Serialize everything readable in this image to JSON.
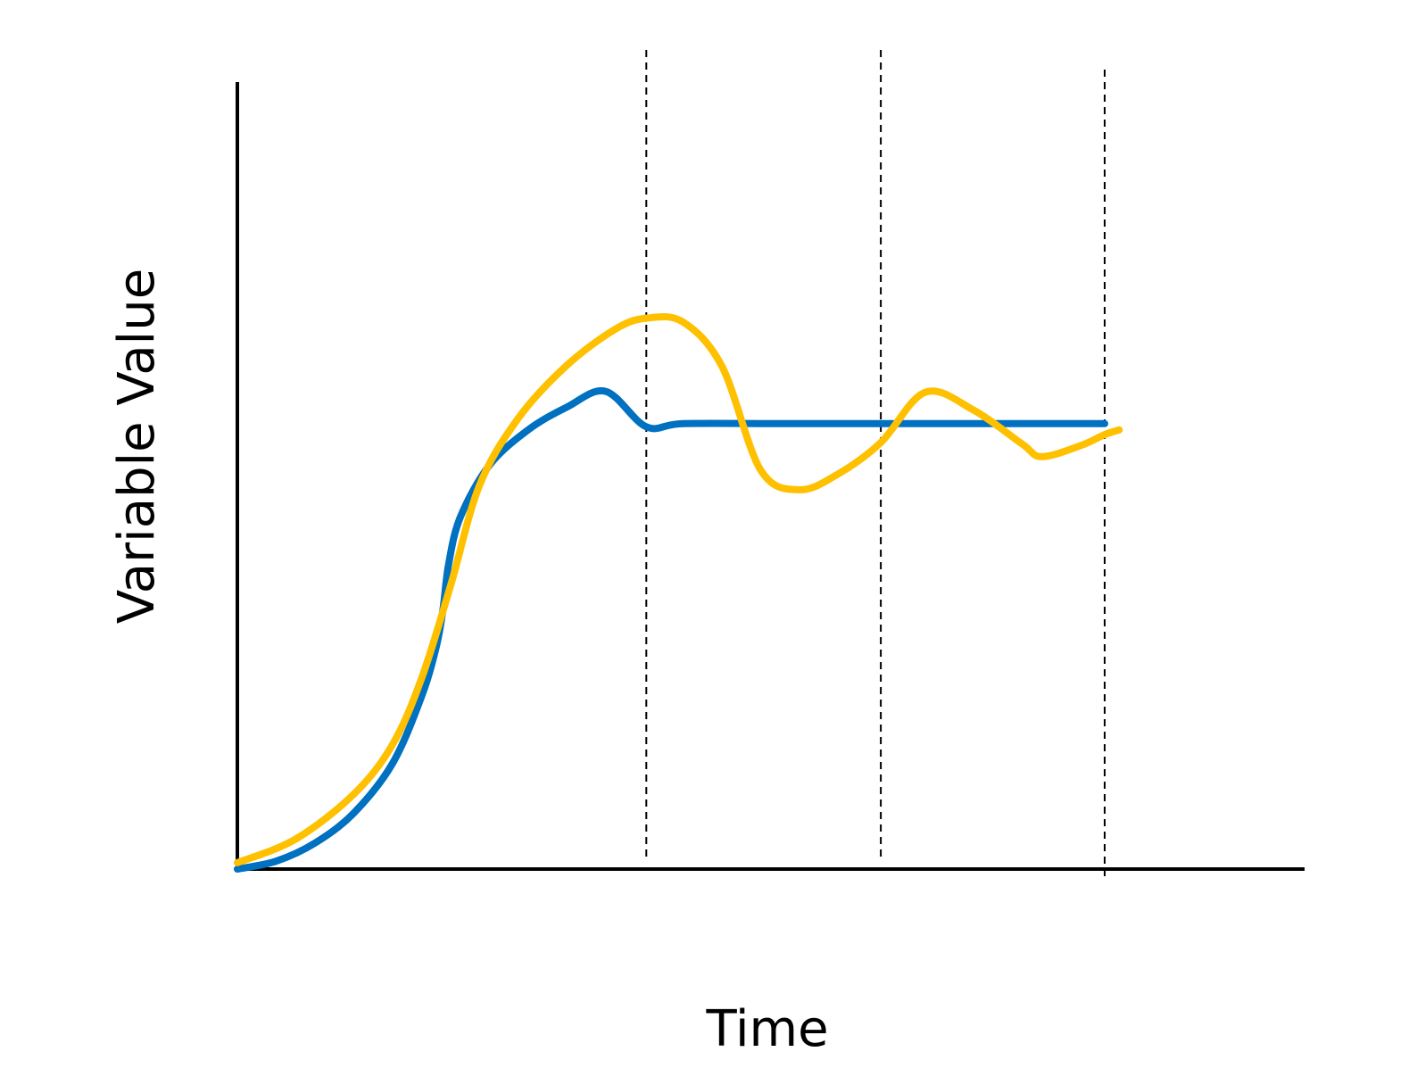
{
  "chart_data": {
    "type": "line",
    "title": "",
    "xlabel": "Time",
    "ylabel": "Variable Value",
    "xlim": [
      0,
      10
    ],
    "ylim": [
      0,
      10
    ],
    "grid": false,
    "legend": "none",
    "tick_labels": false,
    "vertical_reference_lines_x": [
      4.22,
      6.64,
      8.95
    ],
    "series": [
      {
        "color": "#0070C0",
        "points": [
          [
            0.0,
            0.0
          ],
          [
            0.4,
            0.1
          ],
          [
            0.8,
            0.33
          ],
          [
            1.2,
            0.71
          ],
          [
            1.6,
            1.34
          ],
          [
            1.9,
            2.19
          ],
          [
            2.05,
            2.81
          ],
          [
            2.12,
            3.28
          ],
          [
            2.18,
            3.87
          ],
          [
            2.3,
            4.47
          ],
          [
            2.6,
            5.13
          ],
          [
            3.0,
            5.58
          ],
          [
            3.4,
            5.87
          ],
          [
            3.8,
            6.07
          ],
          [
            4.22,
            5.62
          ],
          [
            4.6,
            5.66
          ],
          [
            5.6,
            5.66
          ],
          [
            6.64,
            5.66
          ],
          [
            7.8,
            5.66
          ],
          [
            8.95,
            5.66
          ]
        ]
      },
      {
        "color": "#FFC000",
        "points": [
          [
            0.0,
            0.08
          ],
          [
            0.6,
            0.38
          ],
          [
            1.2,
            0.95
          ],
          [
            1.6,
            1.58
          ],
          [
            1.9,
            2.42
          ],
          [
            2.2,
            3.6
          ],
          [
            2.5,
            4.88
          ],
          [
            2.9,
            5.73
          ],
          [
            3.4,
            6.4
          ],
          [
            3.9,
            6.86
          ],
          [
            4.22,
            7.0
          ],
          [
            4.6,
            6.95
          ],
          [
            5.0,
            6.39
          ],
          [
            5.4,
            5.07
          ],
          [
            5.8,
            4.82
          ],
          [
            6.2,
            5.02
          ],
          [
            6.64,
            5.42
          ],
          [
            7.1,
            6.06
          ],
          [
            7.6,
            5.83
          ],
          [
            8.1,
            5.4
          ],
          [
            8.3,
            5.24
          ],
          [
            8.7,
            5.38
          ],
          [
            8.95,
            5.52
          ],
          [
            9.1,
            5.58
          ]
        ]
      }
    ]
  }
}
